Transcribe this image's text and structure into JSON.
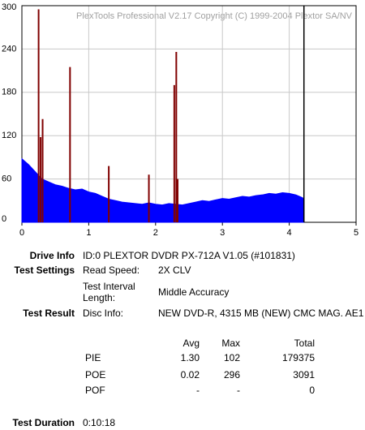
{
  "chart_data": {
    "type": "area",
    "watermark": "PlexTools Professional V2.17 Copyright (C) 1999-2004 Plextor SA/NV",
    "xlim": [
      0,
      5
    ],
    "xticks": [
      0,
      1,
      2,
      3,
      4,
      5
    ],
    "ylim": [
      0,
      300
    ],
    "yticks": [
      0,
      60,
      120,
      180,
      240,
      300
    ],
    "grid": true,
    "series": [
      {
        "color": "#0000ff",
        "style": "area",
        "x": [
          0,
          0.1,
          0.2,
          0.3,
          0.4,
          0.5,
          0.6,
          0.7,
          0.8,
          0.9,
          1.0,
          1.1,
          1.2,
          1.3,
          1.4,
          1.5,
          1.6,
          1.7,
          1.8,
          1.9,
          2.0,
          2.1,
          2.2,
          2.3,
          2.4,
          2.5,
          2.6,
          2.7,
          2.8,
          2.9,
          3.0,
          3.1,
          3.2,
          3.3,
          3.4,
          3.5,
          3.6,
          3.7,
          3.8,
          3.9,
          4.0,
          4.1,
          4.2,
          4.22
        ],
        "values": [
          88,
          80,
          70,
          60,
          56,
          52,
          50,
          47,
          45,
          46,
          42,
          40,
          36,
          32,
          30,
          28,
          27,
          26,
          25,
          27,
          25,
          24,
          26,
          25,
          24,
          26,
          28,
          30,
          29,
          31,
          33,
          32,
          34,
          36,
          35,
          37,
          38,
          40,
          39,
          41,
          40,
          38,
          34,
          30
        ]
      },
      {
        "color": "#800000",
        "style": "spike",
        "x": [
          0.25,
          0.28,
          0.31,
          0.72,
          1.3,
          1.9,
          2.28,
          2.31,
          2.33
        ],
        "values": [
          295,
          118,
          143,
          215,
          78,
          66,
          190,
          236,
          60
        ]
      }
    ],
    "end_marker": {
      "x": 4.22,
      "color": "#000000"
    }
  },
  "report": {
    "drive_info": {
      "label": "Drive Info",
      "value": "ID:0 PLEXTOR DVDR PX-712A V1.05 (#101831)"
    },
    "test_settings": {
      "label": "Test Settings",
      "rows": [
        [
          "Read Speed:",
          "2X CLV"
        ],
        [
          "Test Interval Length:",
          "Middle Accuracy"
        ]
      ]
    },
    "test_result": {
      "label": "Test Result",
      "disc_label": "Disc Info:",
      "disc_value": "NEW DVD-R, 4315 MB (NEW) CMC MAG. AE1"
    },
    "table": {
      "header": [
        "Avg",
        "Max",
        "Total"
      ],
      "rows": [
        [
          "PIE",
          "1.30",
          "102",
          "179375"
        ],
        [
          "POE",
          "0.02",
          "296",
          "3091"
        ],
        [
          "POF",
          "-",
          "-",
          "0"
        ]
      ]
    },
    "test_duration": {
      "label": "Test Duration",
      "value": "0:10:18"
    }
  }
}
